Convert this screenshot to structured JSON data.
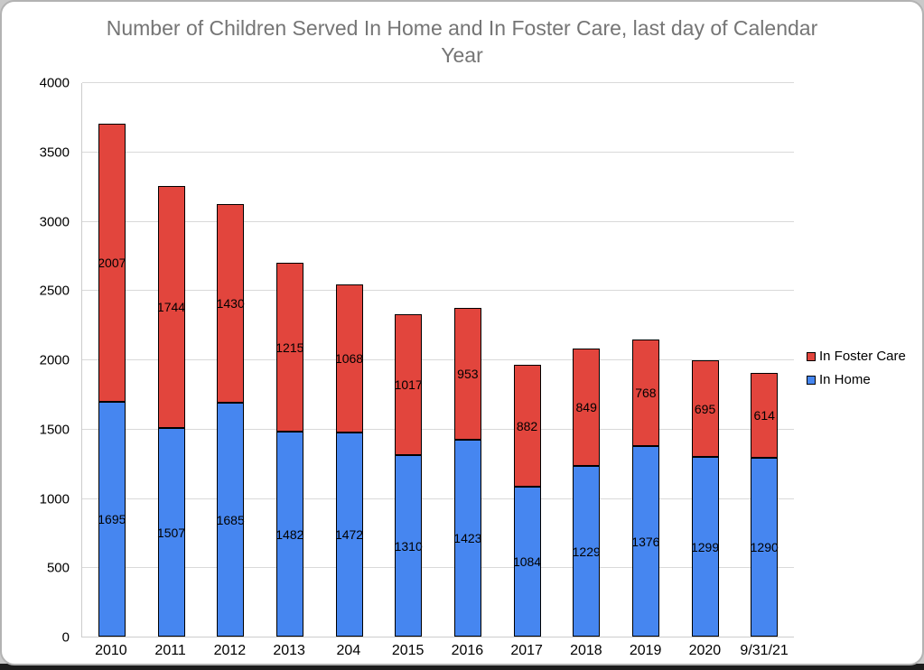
{
  "chart_data": {
    "type": "bar",
    "stacked": true,
    "title": "Number of Children Served In Home and In Foster Care, last day of Calendar Year",
    "categories": [
      "2010",
      "2011",
      "2012",
      "2013",
      "204",
      "2015",
      "2016",
      "2017",
      "2018",
      "2019",
      "2020",
      "9/31/21"
    ],
    "series": [
      {
        "name": "In Home",
        "color": "#4686f0",
        "values": [
          1695,
          1507,
          1685,
          1482,
          1472,
          1310,
          1423,
          1084,
          1229,
          1376,
          1299,
          1290
        ]
      },
      {
        "name": "In Foster Care",
        "color": "#e2453d",
        "values": [
          2007,
          1744,
          1430,
          1215,
          1068,
          1017,
          953,
          882,
          849,
          768,
          695,
          614
        ]
      }
    ],
    "data_labels": true,
    "xlabel": "",
    "ylabel": "",
    "ylim": [
      0,
      4000
    ],
    "ytick_step": 500,
    "yticks": [
      "0",
      "500",
      "1000",
      "1500",
      "2000",
      "2500",
      "3000",
      "3500",
      "4000"
    ],
    "grid": "horizontal",
    "legend_position": "right",
    "legend": [
      {
        "label": "In Foster Care",
        "color": "#e2453d"
      },
      {
        "label": "In Home",
        "color": "#4686f0"
      }
    ],
    "colors": {
      "bar_border": "#000000",
      "gridline": "#d9d9d9",
      "axis_line": "#cccccc",
      "title_text": "#757575",
      "label_text": "#000000"
    }
  }
}
